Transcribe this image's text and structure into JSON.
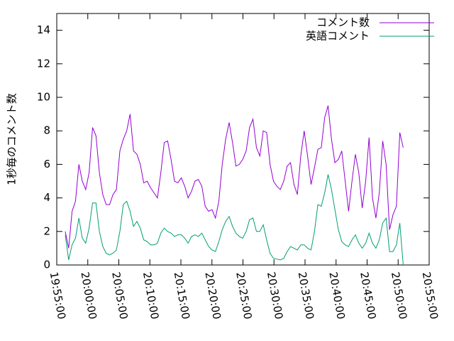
{
  "chart_data": {
    "type": "line",
    "ylabel": "1秒毎のコメント数",
    "xlim": [
      "19:55:00",
      "20:55:00"
    ],
    "xticks": [
      "19:55:00",
      "20:00:00",
      "20:05:00",
      "20:10:00",
      "20:15:00",
      "20:20:00",
      "20:25:00",
      "20:30:00",
      "20:35:00",
      "20:40:00",
      "20:45:00",
      "20:50:00",
      "20:55:00"
    ],
    "ylim": [
      0,
      15
    ],
    "yticks": [
      0,
      2,
      4,
      6,
      8,
      10,
      12,
      14
    ],
    "grid": false,
    "legend": "top-right",
    "x": [
      "19:56:22",
      "19:56:55",
      "19:57:28",
      "19:58:01",
      "19:58:34",
      "19:59:07",
      "19:59:40",
      "20:00:13",
      "20:00:46",
      "20:01:19",
      "20:01:52",
      "20:02:25",
      "20:02:58",
      "20:03:31",
      "20:04:04",
      "20:04:37",
      "20:05:10",
      "20:05:43",
      "20:06:16",
      "20:06:49",
      "20:07:22",
      "20:07:55",
      "20:08:28",
      "20:09:01",
      "20:09:34",
      "20:10:07",
      "20:10:40",
      "20:11:13",
      "20:11:46",
      "20:12:19",
      "20:12:52",
      "20:13:25",
      "20:13:58",
      "20:14:31",
      "20:15:04",
      "20:15:37",
      "20:16:10",
      "20:16:43",
      "20:17:16",
      "20:17:49",
      "20:18:22",
      "20:18:55",
      "20:19:28",
      "20:20:01",
      "20:20:34",
      "20:21:07",
      "20:21:40",
      "20:22:13",
      "20:22:46",
      "20:23:19",
      "20:23:52",
      "20:24:25",
      "20:24:58",
      "20:25:31",
      "20:26:04",
      "20:26:37",
      "20:27:10",
      "20:27:43",
      "20:28:16",
      "20:28:49",
      "20:29:22",
      "20:29:55",
      "20:30:28",
      "20:31:01",
      "20:31:34",
      "20:32:07",
      "20:32:40",
      "20:33:13",
      "20:33:46",
      "20:34:19",
      "20:34:52",
      "20:35:25",
      "20:35:58",
      "20:36:31",
      "20:37:04",
      "20:37:37",
      "20:38:10",
      "20:38:43",
      "20:39:16",
      "20:39:49",
      "20:40:22",
      "20:40:55",
      "20:41:28",
      "20:42:01",
      "20:42:34",
      "20:43:07",
      "20:43:40",
      "20:44:13",
      "20:44:46",
      "20:45:19",
      "20:45:52",
      "20:46:25",
      "20:46:58",
      "20:47:31",
      "20:48:04",
      "20:48:37",
      "20:49:10",
      "20:49:43",
      "20:50:16",
      "20:50:49"
    ],
    "series": [
      {
        "name": "コメント数",
        "color": "#9400d3",
        "values": [
          2.0,
          1.0,
          3.2,
          3.8,
          6.0,
          5.0,
          4.5,
          5.5,
          8.2,
          7.7,
          5.5,
          4.2,
          3.6,
          3.6,
          4.2,
          4.5,
          6.8,
          7.5,
          8.0,
          9.0,
          6.8,
          6.6,
          6.0,
          4.9,
          5.0,
          4.6,
          4.3,
          4.0,
          5.5,
          7.3,
          7.4,
          6.3,
          5.0,
          4.9,
          5.2,
          4.7,
          4.0,
          4.4,
          5.0,
          5.1,
          4.7,
          3.5,
          3.2,
          3.3,
          2.8,
          3.8,
          6.0,
          7.5,
          8.5,
          7.3,
          5.9,
          6.0,
          6.3,
          6.8,
          8.2,
          8.7,
          7.0,
          6.5,
          8.0,
          7.9,
          6.0,
          5.0,
          4.7,
          4.5,
          5.0,
          5.9,
          6.1,
          4.8,
          4.2,
          6.5,
          8.0,
          6.5,
          4.8,
          5.8,
          6.9,
          7.0,
          8.8,
          9.5,
          7.5,
          6.1,
          6.3,
          6.8,
          5.0,
          3.2,
          5.0,
          6.6,
          5.5,
          3.4,
          5.0,
          7.6,
          4.0,
          2.8,
          4.3,
          7.4,
          6.0,
          2.1,
          3.0,
          3.5,
          7.9,
          7.0
        ]
      },
      {
        "name": "英語コメント",
        "color": "#009e73",
        "values": [
          1.8,
          0.3,
          1.2,
          1.6,
          2.8,
          1.6,
          1.3,
          2.2,
          3.7,
          3.7,
          2.0,
          1.1,
          0.7,
          0.6,
          0.7,
          0.9,
          2.0,
          3.6,
          3.8,
          3.2,
          2.3,
          2.6,
          2.2,
          1.5,
          1.4,
          1.2,
          1.2,
          1.3,
          1.9,
          2.2,
          2.0,
          1.9,
          1.7,
          1.8,
          1.8,
          1.6,
          1.3,
          1.7,
          1.8,
          1.7,
          1.9,
          1.5,
          1.1,
          0.9,
          0.8,
          1.4,
          2.1,
          2.6,
          2.9,
          2.3,
          1.9,
          1.7,
          1.6,
          2.0,
          2.7,
          2.8,
          2.0,
          2.0,
          2.4,
          1.5,
          0.7,
          0.4,
          0.35,
          0.3,
          0.4,
          0.8,
          1.1,
          1.0,
          0.9,
          1.2,
          1.2,
          1.0,
          0.9,
          2.0,
          3.6,
          3.5,
          4.3,
          5.4,
          4.5,
          3.3,
          2.1,
          1.4,
          1.2,
          1.1,
          1.5,
          1.8,
          1.3,
          1.0,
          1.3,
          1.9,
          1.3,
          1.0,
          1.5,
          2.5,
          2.8,
          0.8,
          0.8,
          1.2,
          2.5,
          0.0
        ]
      }
    ]
  }
}
